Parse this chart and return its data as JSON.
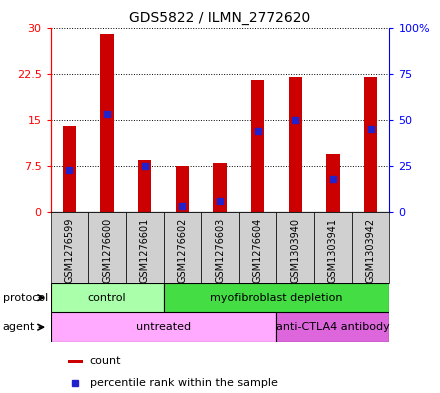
{
  "title": "GDS5822 / ILMN_2772620",
  "samples": [
    "GSM1276599",
    "GSM1276600",
    "GSM1276601",
    "GSM1276602",
    "GSM1276603",
    "GSM1276604",
    "GSM1303940",
    "GSM1303941",
    "GSM1303942"
  ],
  "counts": [
    14.0,
    29.0,
    8.5,
    7.5,
    8.0,
    21.5,
    22.0,
    9.5,
    22.0
  ],
  "percentiles_pct": [
    23.0,
    53.0,
    25.0,
    3.5,
    6.0,
    44.0,
    50.0,
    18.0,
    45.0
  ],
  "ylim_left": [
    0,
    30
  ],
  "ylim_right": [
    0,
    100
  ],
  "yticks_left": [
    0,
    7.5,
    15,
    22.5,
    30
  ],
  "yticks_right": [
    0,
    25,
    50,
    75,
    100
  ],
  "ytick_labels_left": [
    "0",
    "7.5",
    "15",
    "22.5",
    "30"
  ],
  "ytick_labels_right": [
    "0",
    "25",
    "50",
    "75",
    "100%"
  ],
  "protocol_groups": [
    {
      "label": "control",
      "start": 0,
      "end": 3,
      "color": "#aaffaa"
    },
    {
      "label": "myofibroblast depletion",
      "start": 3,
      "end": 9,
      "color": "#44dd44"
    }
  ],
  "agent_groups": [
    {
      "label": "untreated",
      "start": 0,
      "end": 6,
      "color": "#ffaaff"
    },
    {
      "label": "anti-CTLA4 antibody",
      "start": 6,
      "end": 9,
      "color": "#dd66dd"
    }
  ],
  "bar_color": "#cc0000",
  "percentile_color": "#2222cc",
  "bar_width": 0.35,
  "background_color": "#ffffff",
  "xlabel_bg": "#d0d0d0",
  "legend_count_label": "count",
  "legend_percentile_label": "percentile rank within the sample"
}
